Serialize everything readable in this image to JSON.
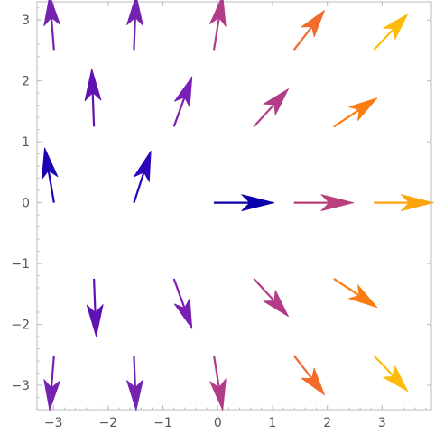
{
  "chart_data": {
    "type": "vector_field",
    "title": "",
    "xlabel": "",
    "ylabel": "",
    "xlim": [
      -3.3,
      3.9
    ],
    "ylim": [
      -3.4,
      3.3
    ],
    "grid": false,
    "legend": "none",
    "x_ticks": [
      -3,
      -2,
      -1,
      0,
      1,
      2,
      3
    ],
    "x_tick_labels": [
      "−3",
      "−2",
      "−1",
      "0",
      "1",
      "2",
      "3"
    ],
    "y_ticks": [
      -3,
      -2,
      -1,
      0,
      1,
      2,
      3
    ],
    "y_tick_labels": [
      "−3",
      "−2",
      "−1",
      "0",
      "1",
      "2",
      "3"
    ],
    "color_scale": [
      "#0d00a8",
      "#7a1fb4",
      "#b33b8a",
      "#f26a2c",
      "#fdbb0a"
    ],
    "vectors": [
      {
        "x": -2.99,
        "y": 2.51,
        "u": -0.08,
        "v": 0.9,
        "color": "#7422b0"
      },
      {
        "x": -1.53,
        "y": 2.51,
        "u": 0.04,
        "v": 0.9,
        "color": "#7422b0"
      },
      {
        "x": -0.07,
        "y": 2.51,
        "u": 0.16,
        "v": 0.9,
        "color": "#b33b8a"
      },
      {
        "x": 1.39,
        "y": 2.51,
        "u": 0.56,
        "v": 0.65,
        "color": "#f26a2c"
      },
      {
        "x": 2.85,
        "y": 2.51,
        "u": 0.62,
        "v": 0.59,
        "color": "#fdbb0a"
      },
      {
        "x": -2.26,
        "y": 1.25,
        "u": -0.04,
        "v": 0.95,
        "color": "#5f12b2"
      },
      {
        "x": -0.8,
        "y": 1.25,
        "u": 0.33,
        "v": 0.82,
        "color": "#7a1fb4"
      },
      {
        "x": 0.66,
        "y": 1.25,
        "u": 0.63,
        "v": 0.62,
        "color": "#b33b8a"
      },
      {
        "x": 2.12,
        "y": 1.25,
        "u": 0.79,
        "v": 0.47,
        "color": "#fb7c10"
      },
      {
        "x": -2.99,
        "y": 0.0,
        "u": -0.17,
        "v": 0.9,
        "color": "#1a03b2"
      },
      {
        "x": -1.53,
        "y": 0.0,
        "u": 0.31,
        "v": 0.85,
        "color": "#2c05ba"
      },
      {
        "x": -0.07,
        "y": 0.0,
        "u": 1.1,
        "v": 0.0,
        "color": "#0a00ac"
      },
      {
        "x": 1.39,
        "y": 0.0,
        "u": 1.09,
        "v": 0.0,
        "color": "#b8407c"
      },
      {
        "x": 2.85,
        "y": 0.0,
        "u": 1.09,
        "v": 0.0,
        "color": "#fca50e"
      },
      {
        "x": -2.26,
        "y": -1.25,
        "u": 0.04,
        "v": -0.95,
        "color": "#5f12b2"
      },
      {
        "x": -0.8,
        "y": -1.25,
        "u": 0.33,
        "v": -0.82,
        "color": "#7a1fb4"
      },
      {
        "x": 0.66,
        "y": -1.25,
        "u": 0.63,
        "v": -0.62,
        "color": "#b33b8a"
      },
      {
        "x": 2.12,
        "y": -1.25,
        "u": 0.79,
        "v": -0.47,
        "color": "#fb7c10"
      },
      {
        "x": -2.99,
        "y": -2.51,
        "u": -0.08,
        "v": -0.9,
        "color": "#7422b0"
      },
      {
        "x": -1.53,
        "y": -2.51,
        "u": 0.04,
        "v": -0.9,
        "color": "#7422b0"
      },
      {
        "x": -0.07,
        "y": -2.51,
        "u": 0.16,
        "v": -0.9,
        "color": "#b33b8a"
      },
      {
        "x": 1.39,
        "y": -2.51,
        "u": 0.56,
        "v": -0.65,
        "color": "#f26a2c"
      },
      {
        "x": 2.85,
        "y": -2.51,
        "u": 0.62,
        "v": -0.59,
        "color": "#fdbb0a"
      }
    ]
  }
}
